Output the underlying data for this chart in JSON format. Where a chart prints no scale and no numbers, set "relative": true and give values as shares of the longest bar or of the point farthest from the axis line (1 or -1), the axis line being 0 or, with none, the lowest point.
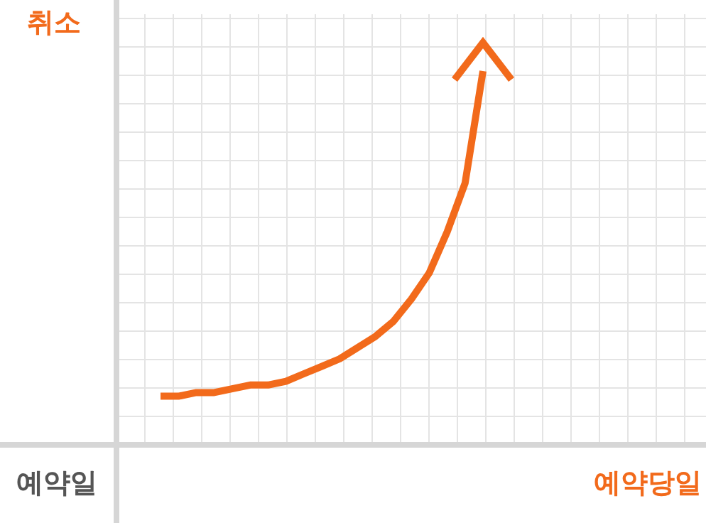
{
  "chart_data": {
    "type": "line",
    "relative": true,
    "ylabel": "취소",
    "xlabel": "예약당일",
    "annotations": [
      "예약일"
    ],
    "grid": true,
    "marker": "none",
    "line_style": "solid",
    "categories": [
      null,
      null,
      null,
      null,
      null,
      null,
      null,
      null,
      null,
      null,
      null,
      null,
      null,
      null,
      null,
      null,
      null,
      null,
      null
    ],
    "series": [
      {
        "color": "#f26a1b",
        "values": [
          0.13,
          0.13,
          0.14,
          0.14,
          0.15,
          0.16,
          0.16,
          0.17,
          0.19,
          0.21,
          0.23,
          0.26,
          0.29,
          0.33,
          0.39,
          0.46,
          0.57,
          0.7,
          1
        ]
      }
    ]
  }
}
